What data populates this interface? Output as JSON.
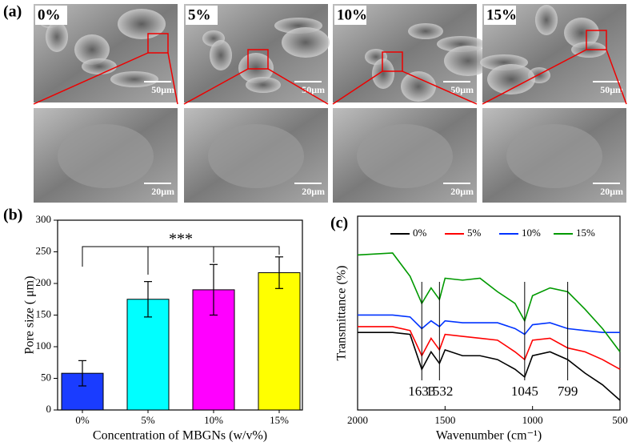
{
  "panel_a": {
    "label": "(a)",
    "top_row": [
      {
        "label": "0%",
        "scale_bar": "50μm"
      },
      {
        "label": "5%",
        "scale_bar": "50μm"
      },
      {
        "label": "10%",
        "scale_bar": "50μm"
      },
      {
        "label": "15%",
        "scale_bar": "50μm"
      }
    ],
    "bottom_row": [
      {
        "scale_bar": "20μm"
      },
      {
        "scale_bar": "20μm"
      },
      {
        "scale_bar": "20μm"
      },
      {
        "scale_bar": "20μm"
      }
    ]
  },
  "chart_data": [
    {
      "type": "bar",
      "panel_label": "(b)",
      "xlabel": "Concentration of MBGNs (w/v%)",
      "ylabel": "Pore size ( μm)",
      "categories": [
        "0%",
        "5%",
        "10%",
        "15%"
      ],
      "values": [
        58,
        175,
        190,
        217
      ],
      "errors": [
        20,
        28,
        40,
        25
      ],
      "colors": [
        "#1a3cff",
        "#00ffff",
        "#ff00ff",
        "#ffff00"
      ],
      "ylim": [
        0,
        300
      ],
      "yticks": [
        0,
        50,
        100,
        150,
        200,
        250,
        300
      ],
      "annotation": "***"
    },
    {
      "type": "line",
      "panel_label": "(c)",
      "xlabel": "Wavenumber (cm⁻¹)",
      "ylabel": "Transmittance (%)",
      "x": [
        2000,
        1800,
        1700,
        1633,
        1580,
        1532,
        1500,
        1400,
        1300,
        1200,
        1100,
        1045,
        1000,
        900,
        799,
        700,
        600,
        500
      ],
      "xlim": [
        2000,
        500
      ],
      "xticks": [
        2000,
        1500,
        1000,
        500
      ],
      "ylim": [
        0,
        100
      ],
      "series": [
        {
          "name": "0%",
          "color": "#000000",
          "values": [
            40,
            40,
            39,
            21,
            30,
            24,
            31,
            28,
            28,
            26,
            21,
            17,
            28,
            30,
            26,
            19,
            13,
            5
          ]
        },
        {
          "name": "5%",
          "color": "#ff0000",
          "values": [
            43,
            43,
            41,
            28,
            37,
            31,
            39,
            38,
            37,
            36,
            30,
            26,
            36,
            37,
            32,
            30,
            26,
            21
          ]
        },
        {
          "name": "10%",
          "color": "#0033ff",
          "values": [
            49,
            49,
            48,
            42,
            46,
            43,
            46,
            45,
            45,
            45,
            42,
            39,
            44,
            45,
            42,
            41,
            40,
            40
          ]
        },
        {
          "name": "15%",
          "color": "#009900",
          "values": [
            80,
            81,
            69,
            55,
            63,
            57,
            68,
            67,
            68,
            61,
            55,
            46,
            59,
            63,
            61,
            52,
            42,
            30
          ]
        }
      ],
      "peaks": [
        1633,
        1532,
        1045,
        799
      ]
    }
  ]
}
